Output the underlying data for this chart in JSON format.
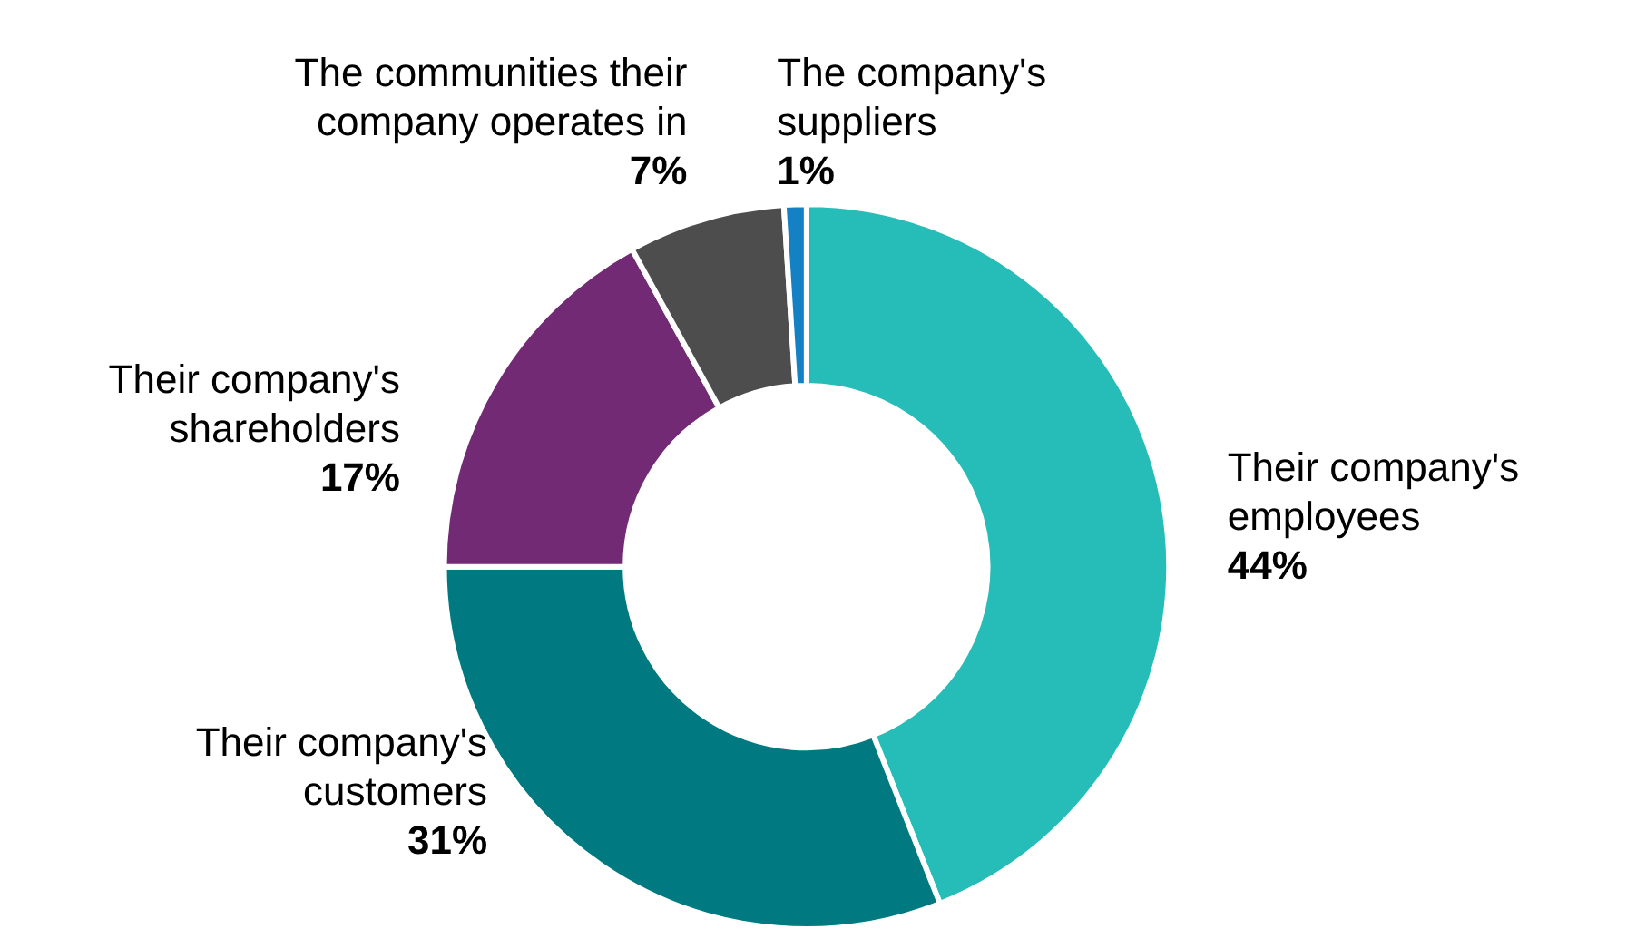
{
  "chart_data": {
    "type": "donut",
    "categories": [
      "Their company's employees",
      "Their company's customers",
      "Their company's shareholders",
      "The communities their company operates in",
      "The company's suppliers"
    ],
    "values": [
      44,
      31,
      17,
      7,
      1
    ],
    "colors": [
      "#26bdb9",
      "#007a80",
      "#722a74",
      "#4d4d4d",
      "#1481c4"
    ],
    "value_labels": [
      "44%",
      "31%",
      "17%",
      "7%",
      "1%"
    ],
    "legend": false
  }
}
